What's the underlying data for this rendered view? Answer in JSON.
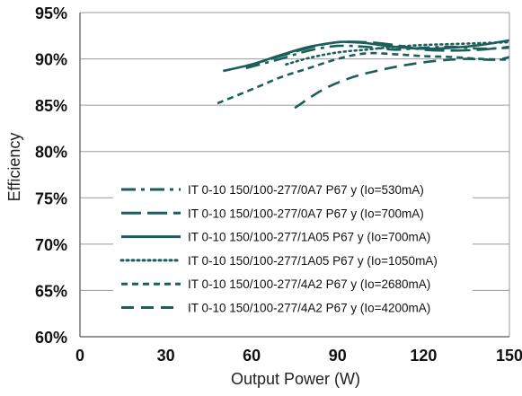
{
  "chart_data": {
    "type": "line",
    "title": "",
    "xlabel": "Output Power (W)",
    "ylabel": "Efficiency",
    "xlim": [
      0,
      150
    ],
    "ylim": [
      60,
      95
    ],
    "x_ticks": [
      "0",
      "30",
      "60",
      "90",
      "120",
      "150"
    ],
    "x_tick_values": [
      0,
      30,
      60,
      90,
      120,
      150
    ],
    "y_ticks": [
      "60%",
      "65%",
      "70%",
      "75%",
      "80%",
      "85%",
      "90%",
      "95%"
    ],
    "y_tick_values": [
      60,
      65,
      70,
      75,
      80,
      85,
      90,
      95
    ],
    "grid": "horizontal",
    "legend_position": "lower-left inside plot",
    "line_color": "#1a5f5a",
    "series": [
      {
        "name": "IT 0-10 150/100-277/0A7 P67 y (Io=530mA)",
        "dash": "dash-dot",
        "x": [
          58,
          70,
          80,
          90,
          100,
          110,
          120,
          130,
          140,
          150
        ],
        "y": [
          89.0,
          90.0,
          90.9,
          91.4,
          91.3,
          91.0,
          91.2,
          91.3,
          91.1,
          91.2
        ]
      },
      {
        "name": "IT 0-10 150/100-277/0A7 P67 y (Io=700mA)",
        "dash": "long-dash",
        "x": [
          58,
          70,
          80,
          90,
          100,
          110,
          120,
          130,
          140,
          150
        ],
        "y": [
          89.2,
          90.3,
          91.2,
          91.8,
          91.8,
          91.5,
          91.0,
          90.9,
          91.0,
          91.3
        ]
      },
      {
        "name": "IT 0-10 150/100-277/1A05 P67 y (Io=700mA)",
        "dash": "solid",
        "x": [
          50,
          60,
          70,
          80,
          90,
          95,
          100,
          110,
          120,
          130,
          140,
          150
        ],
        "y": [
          88.7,
          89.4,
          90.4,
          91.3,
          91.8,
          91.8,
          91.7,
          91.3,
          91.1,
          91.2,
          91.5,
          92.0
        ]
      },
      {
        "name": "IT 0-10 150/100-277/1A05 P67 y (Io=1050mA)",
        "dash": "dotted",
        "x": [
          72,
          80,
          90,
          100,
          110,
          120,
          130,
          140,
          150
        ],
        "y": [
          89.4,
          90.1,
          90.7,
          91.0,
          91.3,
          91.5,
          91.6,
          91.7,
          91.8
        ]
      },
      {
        "name": "IT 0-10 150/100-277/4A2 P67 y (Io=2680mA)",
        "dash": "short-dash",
        "x": [
          48,
          60,
          70,
          80,
          90,
          100,
          110,
          120,
          130,
          140,
          150
        ],
        "y": [
          85.2,
          86.7,
          88.0,
          89.0,
          90.0,
          90.6,
          90.5,
          90.3,
          90.2,
          90.0,
          89.9
        ]
      },
      {
        "name": "IT 0-10 150/100-277/4A2 P67 y (Io=4200mA)",
        "dash": "dash",
        "x": [
          75,
          85,
          95,
          105,
          115,
          125,
          135,
          145,
          150
        ],
        "y": [
          84.7,
          86.7,
          88.0,
          88.8,
          89.4,
          89.8,
          90.0,
          89.9,
          90.2
        ]
      }
    ]
  }
}
